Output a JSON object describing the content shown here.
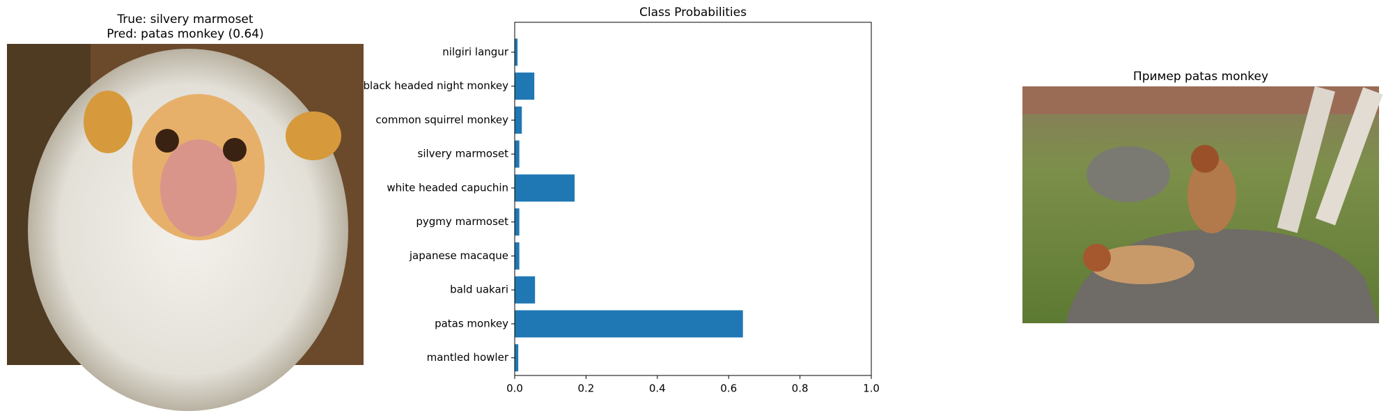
{
  "left_panel": {
    "title_lines": [
      "True: silvery marmoset",
      "Pred: patas monkey (0.64)"
    ]
  },
  "chart_data": {
    "type": "bar",
    "horizontal": true,
    "title": "Class Probabilities",
    "categories": [
      "mantled howler",
      "patas monkey",
      "bald uakari",
      "japanese macaque",
      "pygmy marmoset",
      "white headed capuchin",
      "silvery marmoset",
      "common squirrel monkey",
      "black headed night monkey",
      "nilgiri langur"
    ],
    "values": [
      0.01,
      0.64,
      0.057,
      0.013,
      0.013,
      0.168,
      0.013,
      0.02,
      0.055,
      0.008
    ],
    "color": "#1f77b4",
    "xlim": [
      0,
      1
    ],
    "xticks": [
      {
        "value": 0,
        "label": "0.0"
      },
      0.2,
      0.4,
      0.6,
      0.8,
      {
        "value": 1,
        "label": "1.0"
      }
    ]
  },
  "right_panel": {
    "title": "Пример patas monkey"
  }
}
